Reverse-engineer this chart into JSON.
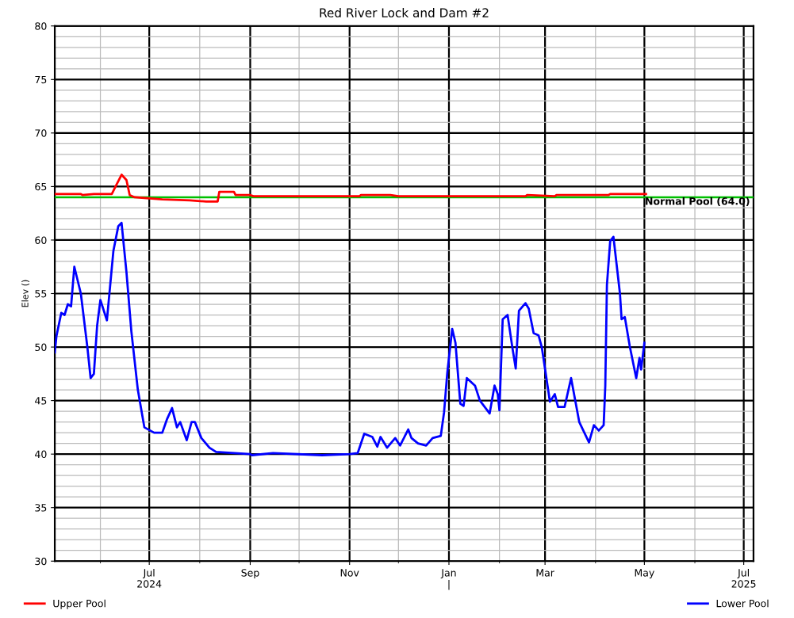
{
  "chart_data": {
    "type": "line",
    "title": "Red River Lock and Dam #2",
    "ylabel": "Elev ()",
    "xlim": [
      "2024-05-04",
      "2025-07-07"
    ],
    "ylim": [
      30,
      80
    ],
    "yticks": [
      30,
      35,
      40,
      45,
      50,
      55,
      60,
      65,
      70,
      75,
      80
    ],
    "xticks": [
      {
        "value": "2024-06-01",
        "label": null
      },
      {
        "value": "2024-07-01",
        "label": "Jul\n2024"
      },
      {
        "value": "2024-08-01",
        "label": null
      },
      {
        "value": "2024-09-01",
        "label": "Sep"
      },
      {
        "value": "2024-10-01",
        "label": null
      },
      {
        "value": "2024-11-01",
        "label": "Nov"
      },
      {
        "value": "2024-12-01",
        "label": null
      },
      {
        "value": "2025-01-01",
        "label": "Jan\n|"
      },
      {
        "value": "2025-02-01",
        "label": null
      },
      {
        "value": "2025-03-01",
        "label": "Mar"
      },
      {
        "value": "2025-04-01",
        "label": null
      },
      {
        "value": "2025-05-01",
        "label": "May"
      },
      {
        "value": "2025-06-01",
        "label": null
      },
      {
        "value": "2025-07-01",
        "label": "Jul\n2025"
      }
    ],
    "grid": true,
    "legend": "bottom",
    "marker": "none",
    "line_style": "solid",
    "ref_lines": [
      {
        "axis": "y",
        "value": 64.0,
        "label": "Normal Pool (64.0)",
        "color": "#00c000"
      }
    ],
    "series": [
      {
        "name": "Upper Pool",
        "color": "#ff0000",
        "x": [
          "2024-05-04",
          "2024-05-20",
          "2024-05-21",
          "2024-05-28",
          "2024-06-08",
          "2024-06-11",
          "2024-06-14",
          "2024-06-17",
          "2024-06-19",
          "2024-06-22",
          "2024-07-01",
          "2024-07-09",
          "2024-07-26",
          "2024-08-05",
          "2024-08-12",
          "2024-08-13",
          "2024-08-22",
          "2024-08-23",
          "2024-09-01",
          "2024-09-03",
          "2024-09-15",
          "2024-11-07",
          "2024-11-08",
          "2024-11-26",
          "2024-12-01",
          "2024-12-02",
          "2025-02-17",
          "2025-02-18",
          "2025-03-07",
          "2025-03-08",
          "2025-04-09",
          "2025-04-10",
          "2025-05-02"
        ],
        "values": [
          64.3,
          64.3,
          64.2,
          64.3,
          64.3,
          65.2,
          66.1,
          65.6,
          64.2,
          64.0,
          63.9,
          63.8,
          63.7,
          63.6,
          63.6,
          64.5,
          64.5,
          64.2,
          64.2,
          64.1,
          64.1,
          64.1,
          64.2,
          64.2,
          64.1,
          64.1,
          64.1,
          64.2,
          64.1,
          64.2,
          64.2,
          64.3,
          64.3
        ]
      },
      {
        "name": "Lower Pool",
        "color": "#0000ff",
        "x": [
          "2024-05-04",
          "2024-05-05",
          "2024-05-08",
          "2024-05-10",
          "2024-05-12",
          "2024-05-14",
          "2024-05-16",
          "2024-05-20",
          "2024-05-24",
          "2024-05-26",
          "2024-05-28",
          "2024-05-30",
          "2024-06-01",
          "2024-06-05",
          "2024-06-09",
          "2024-06-12",
          "2024-06-14",
          "2024-06-17",
          "2024-06-20",
          "2024-06-24",
          "2024-06-28",
          "2024-07-04",
          "2024-07-09",
          "2024-07-12",
          "2024-07-15",
          "2024-07-18",
          "2024-07-20",
          "2024-07-24",
          "2024-07-27",
          "2024-07-29",
          "2024-08-02",
          "2024-08-07",
          "2024-08-11",
          "2024-09-01",
          "2024-09-02",
          "2024-09-15",
          "2024-10-15",
          "2024-11-01",
          "2024-11-06",
          "2024-11-10",
          "2024-11-15",
          "2024-11-18",
          "2024-11-20",
          "2024-11-24",
          "2024-11-29",
          "2024-12-02",
          "2024-12-07",
          "2024-12-09",
          "2024-12-13",
          "2024-12-18",
          "2024-12-22",
          "2024-12-27",
          "2024-12-29",
          "2024-12-31",
          "2025-01-03",
          "2025-01-05",
          "2025-01-08",
          "2025-01-10",
          "2025-01-12",
          "2025-01-17",
          "2025-01-20",
          "2025-01-26",
          "2025-01-29",
          "2025-01-31",
          "2025-02-01",
          "2025-02-03",
          "2025-02-06",
          "2025-02-09",
          "2025-02-11",
          "2025-02-13",
          "2025-02-17",
          "2025-02-19",
          "2025-02-22",
          "2025-02-25",
          "2025-02-27",
          "2025-03-04",
          "2025-03-07",
          "2025-03-09",
          "2025-03-13",
          "2025-03-17",
          "2025-03-22",
          "2025-03-28",
          "2025-03-31",
          "2025-04-03",
          "2025-04-06",
          "2025-04-07",
          "2025-04-08",
          "2025-04-10",
          "2025-04-12",
          "2025-04-16",
          "2025-04-17",
          "2025-04-19",
          "2025-04-22",
          "2025-04-26",
          "2025-04-28",
          "2025-04-29",
          "2025-05-01"
        ],
        "values": [
          49.5,
          51,
          53.2,
          53,
          54,
          53.8,
          57.5,
          55,
          50,
          47.1,
          47.5,
          52,
          54.4,
          52.5,
          59,
          61.3,
          61.6,
          57,
          51.5,
          46,
          42.5,
          42,
          42,
          43.3,
          44.3,
          42.5,
          43,
          41.3,
          43,
          43,
          41.5,
          40.6,
          40.2,
          40,
          39.9,
          40.1,
          39.9,
          40,
          40.1,
          41.9,
          41.6,
          40.7,
          41.6,
          40.6,
          41.5,
          40.8,
          42.3,
          41.5,
          41,
          40.8,
          41.5,
          41.7,
          43.9,
          47.6,
          51.7,
          50.4,
          44.7,
          44.5,
          47.1,
          46.4,
          45,
          43.8,
          46.4,
          45.6,
          44.1,
          52.6,
          53,
          49.9,
          48,
          53.4,
          54.1,
          53.6,
          51.3,
          51.1,
          50,
          44.9,
          45.6,
          44.4,
          44.4,
          47.1,
          43,
          41.1,
          42.7,
          42.2,
          42.7,
          46.4,
          55.8,
          59.9,
          60.3,
          55,
          52.6,
          52.8,
          50.1,
          47.1,
          49,
          47.9,
          50.4
        ]
      }
    ]
  }
}
